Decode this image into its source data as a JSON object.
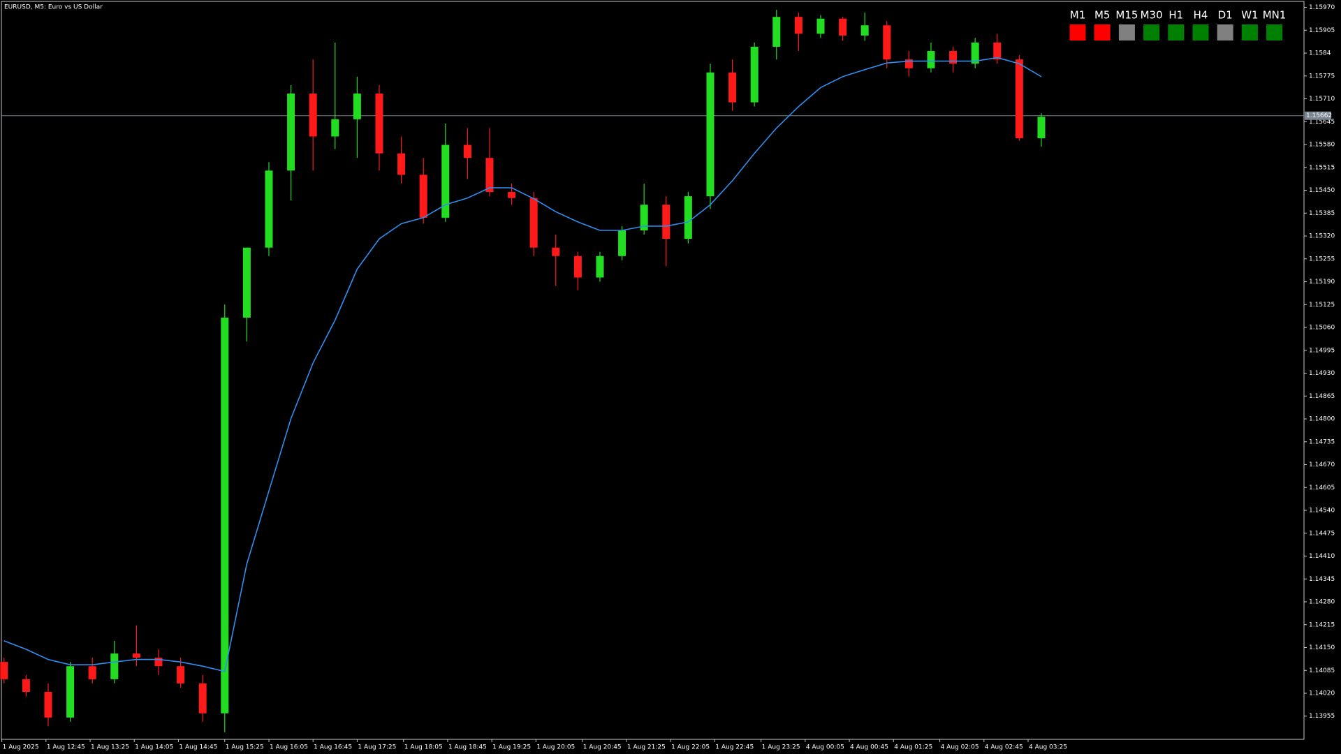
{
  "chart_data": {
    "type": "candlestick",
    "title": "EURUSD, M5:  Euro vs US Dollar",
    "up_color": "#22dd22",
    "down_color": "#ff1a1a",
    "open": [
      1.14109,
      1.1406,
      1.14024,
      1.13951,
      1.14097,
      1.1406,
      1.14133,
      1.14121,
      1.14097,
      1.14048,
      1.13963,
      1.15088,
      1.15287,
      1.15506,
      1.15725,
      1.15603,
      1.15652,
      1.15725,
      1.15555,
      1.15494,
      1.15372,
      1.15579,
      1.15542,
      1.15445,
      1.15428,
      1.15287,
      1.15263,
      1.15202,
      1.15263,
      1.15336,
      1.15409,
      1.15312,
      1.15433,
      1.15785,
      1.157,
      1.15858,
      1.15943,
      1.15895,
      1.15938,
      1.1589,
      1.15919,
      1.15822,
      1.15797,
      1.15846,
      1.1581,
      1.1587,
      1.15822,
      1.15598
    ],
    "high": [
      1.14121,
      1.14072,
      1.14048,
      1.14109,
      1.14121,
      1.14169,
      1.14213,
      1.14145,
      1.14121,
      1.14072,
      1.15125,
      1.15287,
      1.1553,
      1.15749,
      1.15822,
      1.1587,
      1.15773,
      1.15749,
      1.15603,
      1.15542,
      1.1564,
      1.15627,
      1.15627,
      1.15469,
      1.15445,
      1.15324,
      1.15275,
      1.15275,
      1.15348,
      1.15469,
      1.15433,
      1.15445,
      1.1581,
      1.15822,
      1.1587,
      1.15963,
      1.15955,
      1.15948,
      1.15943,
      1.15955,
      1.15931,
      1.15846,
      1.1587,
      1.15858,
      1.15883,
      1.15895,
      1.15834,
      1.15669
    ],
    "low": [
      1.14048,
      1.14011,
      1.13926,
      1.13939,
      1.14048,
      1.14048,
      1.14097,
      1.14072,
      1.14036,
      1.13939,
      1.13909,
      1.1502,
      1.15263,
      1.15421,
      1.15506,
      1.15567,
      1.15542,
      1.15506,
      1.15469,
      1.15355,
      1.1536,
      1.15482,
      1.15433,
      1.15409,
      1.15263,
      1.15178,
      1.15166,
      1.1519,
      1.15251,
      1.15324,
      1.15234,
      1.15299,
      1.15397,
      1.15676,
      1.15688,
      1.15822,
      1.15846,
      1.15883,
      1.15875,
      1.15875,
      1.15797,
      1.15773,
      1.15785,
      1.15785,
      1.15797,
      1.1581,
      1.15591,
      1.15574
    ],
    "close": [
      1.1406,
      1.14024,
      1.13951,
      1.14097,
      1.1406,
      1.14133,
      1.14121,
      1.14097,
      1.14048,
      1.13963,
      1.15088,
      1.15287,
      1.15506,
      1.15725,
      1.15603,
      1.15652,
      1.15725,
      1.15555,
      1.15494,
      1.15372,
      1.15579,
      1.15542,
      1.15445,
      1.15428,
      1.15287,
      1.15263,
      1.15202,
      1.15263,
      1.15336,
      1.15409,
      1.15312,
      1.15433,
      1.15785,
      1.157,
      1.15858,
      1.15943,
      1.15895,
      1.15938,
      1.1589,
      1.15919,
      1.15822,
      1.15797,
      1.15846,
      1.1581,
      1.1587,
      1.15822,
      1.15598,
      1.15659
    ],
    "ma": {
      "color": "#2e8ff0",
      "values": [
        1.14169,
        1.14145,
        1.14116,
        1.14101,
        1.14101,
        1.14109,
        1.14116,
        1.14116,
        1.14109,
        1.14097,
        1.14082,
        1.14388,
        1.14595,
        1.14801,
        1.14959,
        1.15081,
        1.15226,
        1.15312,
        1.15355,
        1.15372,
        1.15409,
        1.15428,
        1.15457,
        1.15457,
        1.15426,
        1.15389,
        1.1536,
        1.15336,
        1.15336,
        1.15348,
        1.15348,
        1.1536,
        1.15409,
        1.15477,
        1.15555,
        1.15627,
        1.15688,
        1.15742,
        1.15773,
        1.15793,
        1.15812,
        1.15817,
        1.15817,
        1.15817,
        1.15817,
        1.15827,
        1.1581,
        1.15773
      ]
    },
    "current_price": 1.15662,
    "current_price_color": "#7a8590",
    "xlim": [
      -0.12,
      58.9
    ],
    "ylim": [
      1.13889,
      1.15987
    ],
    "xticks": [
      {
        "value": -0.1,
        "label": "1 Aug 2025"
      },
      {
        "value": 1.9,
        "label": "1 Aug 12:45"
      },
      {
        "value": 3.9,
        "label": "1 Aug 13:25"
      },
      {
        "value": 5.9,
        "label": "1 Aug 14:05"
      },
      {
        "value": 7.9,
        "label": "1 Aug 14:45"
      },
      {
        "value": 10.0,
        "label": "1 Aug 15:25"
      },
      {
        "value": 12.0,
        "label": "1 Aug 16:05"
      },
      {
        "value": 14.0,
        "label": "1 Aug 16:45"
      },
      {
        "value": 16.0,
        "label": "1 Aug 17:25"
      },
      {
        "value": 18.1,
        "label": "1 Aug 18:05"
      },
      {
        "value": 20.1,
        "label": "1 Aug 18:45"
      },
      {
        "value": 22.1,
        "label": "1 Aug 19:25"
      },
      {
        "value": 24.1,
        "label": "1 Aug 20:05"
      },
      {
        "value": 26.2,
        "label": "1 Aug 20:45"
      },
      {
        "value": 28.2,
        "label": "1 Aug 21:25"
      },
      {
        "value": 30.2,
        "label": "1 Aug 22:05"
      },
      {
        "value": 32.2,
        "label": "1 Aug 22:45"
      },
      {
        "value": 34.3,
        "label": "1 Aug 23:25"
      },
      {
        "value": 36.3,
        "label": "4 Aug 00:05"
      },
      {
        "value": 38.3,
        "label": "4 Aug 00:45"
      },
      {
        "value": 40.3,
        "label": "4 Aug 01:25"
      },
      {
        "value": 42.4,
        "label": "4 Aug 02:05"
      },
      {
        "value": 44.4,
        "label": "4 Aug 02:45"
      },
      {
        "value": 46.4,
        "label": "4 Aug 03:25"
      }
    ],
    "yticks": [
      {
        "value": 1.1597,
        "label": "1.15970"
      },
      1.15905,
      1.1584,
      1.15775,
      {
        "value": 1.1571,
        "label": "1.15710"
      },
      1.15645,
      {
        "value": 1.1558,
        "label": "1.15580"
      },
      1.15515,
      {
        "value": 1.1545,
        "label": "1.15450"
      },
      1.15385,
      {
        "value": 1.1532,
        "label": "1.15320"
      },
      1.15255,
      {
        "value": 1.1519,
        "label": "1.15190"
      },
      1.15125,
      {
        "value": 1.1506,
        "label": "1.15060"
      },
      1.14995,
      {
        "value": 1.1493,
        "label": "1.14930"
      },
      1.14865,
      {
        "value": 1.148,
        "label": "1.14800"
      },
      1.14735,
      {
        "value": 1.1467,
        "label": "1.14670"
      },
      1.14605,
      {
        "value": 1.1454,
        "label": "1.14540"
      },
      1.14475,
      {
        "value": 1.1441,
        "label": "1.14410"
      },
      1.14345,
      {
        "value": 1.1428,
        "label": "1.14280"
      },
      1.14215,
      {
        "value": 1.1415,
        "label": "1.14150"
      },
      1.14085,
      {
        "value": 1.1402,
        "label": "1.14020"
      },
      1.13955
    ]
  },
  "timeframe_panel": [
    {
      "label": "M1",
      "color": "#ff0000"
    },
    {
      "label": "M5",
      "color": "#ff0000"
    },
    {
      "label": "M15",
      "color": "#808080"
    },
    {
      "label": "M30",
      "color": "#008000"
    },
    {
      "label": "H1",
      "color": "#008000"
    },
    {
      "label": "H4",
      "color": "#008000"
    },
    {
      "label": "D1",
      "color": "#808080"
    },
    {
      "label": "W1",
      "color": "#008000"
    },
    {
      "label": "MN1",
      "color": "#008000"
    }
  ]
}
